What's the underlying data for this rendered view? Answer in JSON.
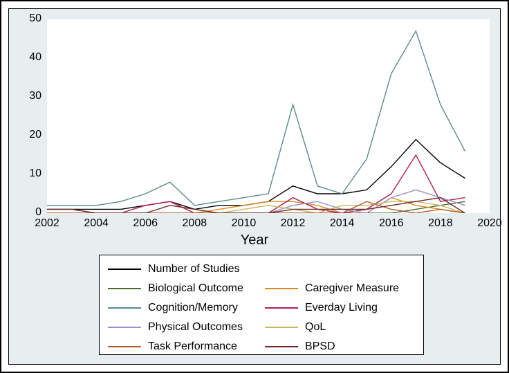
{
  "chart": {
    "type": "line",
    "background_color": "#e8eef0",
    "plot_background": "#ffffff",
    "border_color": "#000000",
    "x_title": "Year",
    "x_title_fontsize": 20,
    "xlim": [
      2002,
      2020
    ],
    "xticks": [
      2002,
      2004,
      2006,
      2008,
      2010,
      2012,
      2014,
      2016,
      2018,
      2020
    ],
    "ylim": [
      0,
      50
    ],
    "yticks": [
      0,
      10,
      20,
      30,
      40,
      50
    ],
    "tick_fontsize": 16,
    "line_width": 1.4,
    "series": [
      {
        "name": "Number of Studies",
        "color": "#000000",
        "x": [
          2002,
          2003,
          2004,
          2005,
          2006,
          2007,
          2008,
          2009,
          2010,
          2011,
          2012,
          2013,
          2014,
          2015,
          2016,
          2017,
          2018,
          2019
        ],
        "y": [
          1,
          1,
          1,
          1,
          2,
          3,
          1,
          2,
          2,
          3,
          7,
          5,
          5,
          6,
          12,
          19,
          13,
          9
        ]
      },
      {
        "name": "Biological Outcome",
        "color": "#4a6b2a",
        "x": [
          2002,
          2003,
          2004,
          2005,
          2006,
          2007,
          2008,
          2009,
          2010,
          2011,
          2012,
          2013,
          2014,
          2015,
          2016,
          2017,
          2018,
          2019
        ],
        "y": [
          0,
          0,
          0,
          0,
          0,
          0,
          0,
          0,
          0,
          0,
          0,
          0,
          0,
          0,
          0,
          1,
          2,
          3
        ]
      },
      {
        "name": "Caregiver Measure",
        "color": "#d98b1f",
        "x": [
          2002,
          2003,
          2004,
          2005,
          2006,
          2007,
          2008,
          2009,
          2010,
          2011,
          2012,
          2013,
          2014,
          2015,
          2016,
          2017,
          2018,
          2019
        ],
        "y": [
          0,
          0,
          0,
          0,
          0,
          0,
          0,
          1,
          2,
          3,
          3,
          2,
          0,
          0,
          4,
          2,
          1,
          0
        ]
      },
      {
        "name": "Cognition/Memory",
        "color": "#5a8a8a",
        "x": [
          2002,
          2003,
          2004,
          2005,
          2006,
          2007,
          2008,
          2009,
          2010,
          2011,
          2012,
          2013,
          2014,
          2015,
          2016,
          2017,
          2018,
          2019
        ],
        "y": [
          2,
          2,
          2,
          3,
          5,
          8,
          2,
          3,
          4,
          5,
          28,
          7,
          5,
          14,
          36,
          47,
          28,
          16
        ]
      },
      {
        "name": "Everday Living",
        "color": "#b01c52",
        "x": [
          2002,
          2003,
          2004,
          2005,
          2006,
          2007,
          2008,
          2009,
          2010,
          2011,
          2012,
          2013,
          2014,
          2015,
          2016,
          2017,
          2018,
          2019
        ],
        "y": [
          0,
          0,
          0,
          0,
          2,
          3,
          0,
          0,
          0,
          0,
          4,
          1,
          0,
          1,
          5,
          15,
          3,
          4
        ]
      },
      {
        "name": "Physical Outcomes",
        "color": "#9a8fc7",
        "x": [
          2002,
          2003,
          2004,
          2005,
          2006,
          2007,
          2008,
          2009,
          2010,
          2011,
          2012,
          2013,
          2014,
          2015,
          2016,
          2017,
          2018,
          2019
        ],
        "y": [
          0,
          0,
          0,
          0,
          0,
          0,
          0,
          0,
          0,
          0,
          2,
          3,
          1,
          0,
          4,
          6,
          4,
          2
        ]
      },
      {
        "name": "QoL",
        "color": "#c7b85a",
        "x": [
          2002,
          2003,
          2004,
          2005,
          2006,
          2007,
          2008,
          2009,
          2010,
          2011,
          2012,
          2013,
          2014,
          2015,
          2016,
          2017,
          2018,
          2019
        ],
        "y": [
          0,
          0,
          0,
          0,
          0,
          0,
          0,
          0,
          1,
          2,
          1,
          0,
          2,
          2,
          3,
          3,
          2,
          0
        ]
      },
      {
        "name": "Task Performance",
        "color": "#b55a2a",
        "x": [
          2002,
          2003,
          2004,
          2005,
          2006,
          2007,
          2008,
          2009,
          2010,
          2011,
          2012,
          2013,
          2014,
          2015,
          2016,
          2017,
          2018,
          2019
        ],
        "y": [
          0,
          0,
          0,
          0,
          0,
          0,
          0,
          0,
          0,
          0,
          0,
          0,
          0,
          3,
          1,
          0,
          1,
          0
        ]
      },
      {
        "name": "BPSD",
        "color": "#6b2a2a",
        "x": [
          2002,
          2003,
          2004,
          2005,
          2006,
          2007,
          2008,
          2009,
          2010,
          2011,
          2012,
          2013,
          2014,
          2015,
          2016,
          2017,
          2018,
          2019
        ],
        "y": [
          1,
          1,
          0,
          0,
          0,
          2,
          1,
          0,
          0,
          0,
          1,
          1,
          1,
          1,
          2,
          3,
          4,
          0
        ]
      }
    ],
    "legend_layout": [
      [
        "Number of Studies",
        null
      ],
      [
        "Biological Outcome",
        "Caregiver Measure"
      ],
      [
        "Cognition/Memory",
        "Everday Living"
      ],
      [
        "Physical Outcomes",
        "QoL"
      ],
      [
        "Task Performance",
        "BPSD"
      ]
    ]
  }
}
